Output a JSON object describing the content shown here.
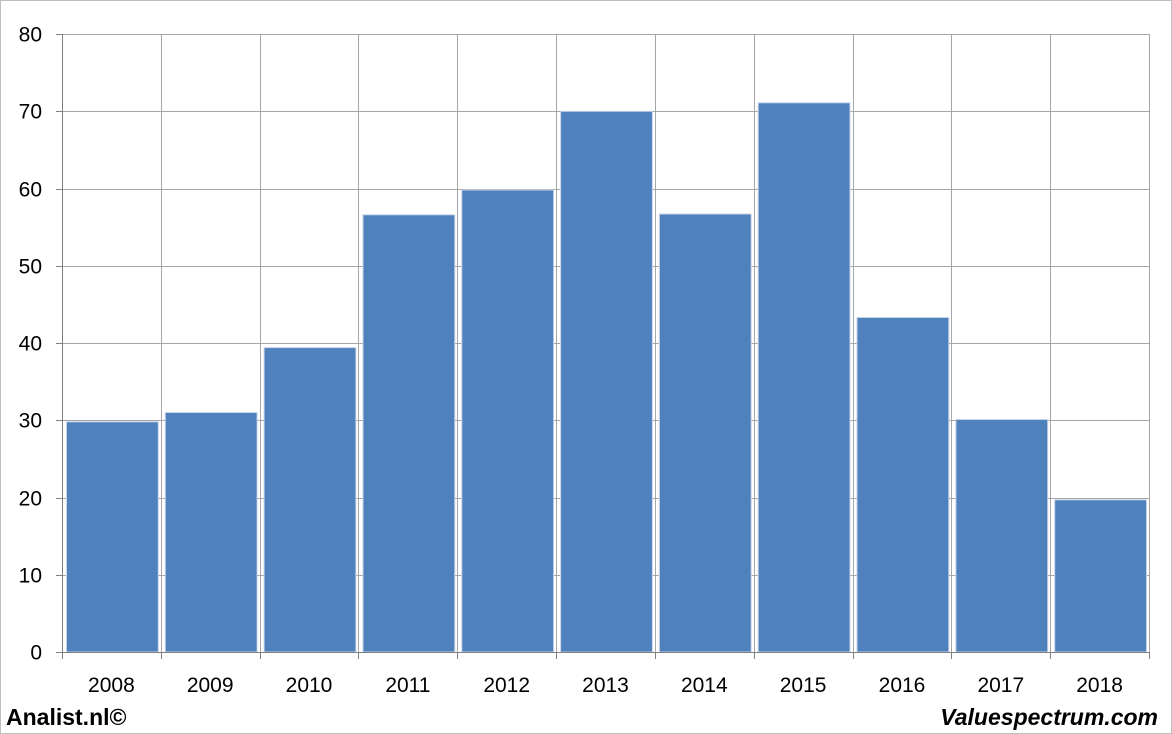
{
  "chart_data": {
    "type": "bar",
    "title": "",
    "xlabel": "",
    "ylabel": "",
    "categories": [
      "2008",
      "2009",
      "2010",
      "2011",
      "2012",
      "2013",
      "2014",
      "2015",
      "2016",
      "2017",
      "2018"
    ],
    "values": [
      29.8,
      31.0,
      39.4,
      56.6,
      59.8,
      70.0,
      56.7,
      71.1,
      43.3,
      30.1,
      19.7
    ],
    "ylim": [
      0,
      80
    ],
    "yticks": [
      0,
      10,
      20,
      30,
      40,
      50,
      60,
      70,
      80
    ],
    "grid": true,
    "bar_color": "#4f81bd",
    "grid_color": "#a6a6a6",
    "legend": "none"
  },
  "footer": {
    "left": "Analist.nl©",
    "right": "Valuespectrum.com"
  }
}
